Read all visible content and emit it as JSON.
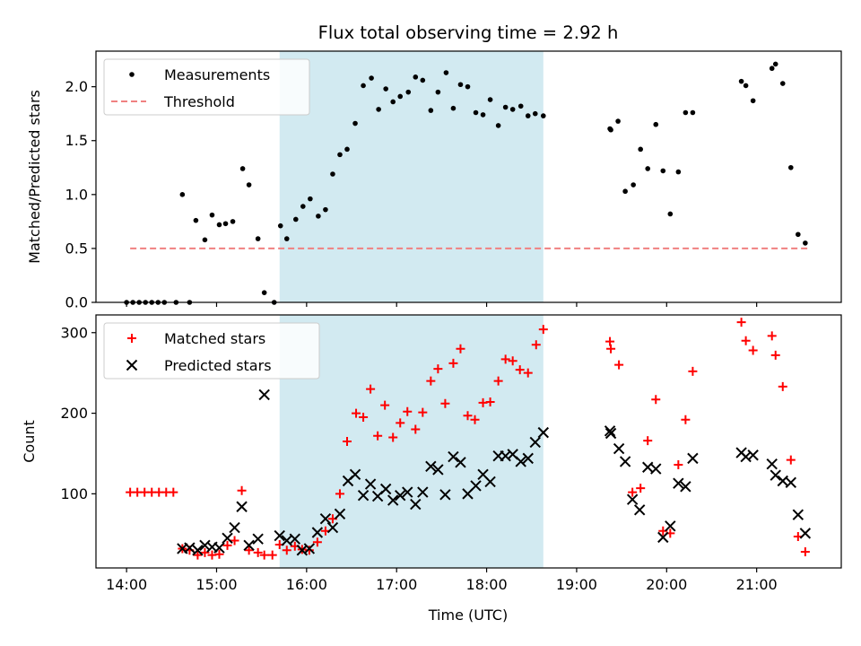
{
  "chart_data": {
    "title": "Flux total observing time = 2.92 h",
    "x_axis": {
      "label": "Time (UTC)",
      "min_hours": 13.66,
      "max_hours": 21.94,
      "ticks": [
        {
          "hours": 14,
          "label": "14:00"
        },
        {
          "hours": 15,
          "label": "15:00"
        },
        {
          "hours": 16,
          "label": "16:00"
        },
        {
          "hours": 17,
          "label": "17:00"
        },
        {
          "hours": 18,
          "label": "18:00"
        },
        {
          "hours": 19,
          "label": "19:00"
        },
        {
          "hours": 20,
          "label": "20:00"
        },
        {
          "hours": 21,
          "label": "21:00"
        }
      ]
    },
    "shaded_interval_hours": [
      15.7,
      18.63
    ],
    "shade_color": "#add8e6",
    "panels": [
      {
        "type": "scatter",
        "ylabel": "Matched/Predicted stars",
        "ylim": [
          0.0,
          2.33
        ],
        "yticks": [
          0.0,
          0.5,
          1.0,
          1.5,
          2.0
        ],
        "ytick_labels": [
          "0.0",
          "0.5",
          "1.0",
          "1.5",
          "2.0"
        ],
        "legend": {
          "position": "upper left",
          "entries": [
            "Measurements",
            "Threshold"
          ]
        },
        "series": [
          {
            "name": "Measurements",
            "marker": "dot",
            "color": "#000000",
            "points": [
              [
                14.0,
                0.0
              ],
              [
                14.07,
                0.0
              ],
              [
                14.14,
                0.0
              ],
              [
                14.21,
                0.0
              ],
              [
                14.28,
                0.0
              ],
              [
                14.35,
                0.0
              ],
              [
                14.42,
                0.0
              ],
              [
                14.55,
                0.0
              ],
              [
                14.7,
                0.0
              ],
              [
                14.62,
                1.0
              ],
              [
                14.77,
                0.76
              ],
              [
                14.87,
                0.58
              ],
              [
                14.95,
                0.81
              ],
              [
                15.03,
                0.72
              ],
              [
                15.1,
                0.73
              ],
              [
                15.18,
                0.75
              ],
              [
                15.29,
                1.24
              ],
              [
                15.36,
                1.09
              ],
              [
                15.46,
                0.59
              ],
              [
                15.53,
                0.09
              ],
              [
                15.64,
                0.0
              ],
              [
                15.71,
                0.71
              ],
              [
                15.78,
                0.59
              ],
              [
                15.88,
                0.77
              ],
              [
                15.96,
                0.89
              ],
              [
                16.04,
                0.96
              ],
              [
                16.13,
                0.8
              ],
              [
                16.21,
                0.86
              ],
              [
                16.29,
                1.19
              ],
              [
                16.37,
                1.37
              ],
              [
                16.45,
                1.42
              ],
              [
                16.54,
                1.66
              ],
              [
                16.63,
                2.01
              ],
              [
                16.72,
                2.08
              ],
              [
                16.8,
                1.79
              ],
              [
                16.88,
                1.98
              ],
              [
                16.96,
                1.86
              ],
              [
                17.04,
                1.91
              ],
              [
                17.13,
                1.95
              ],
              [
                17.21,
                2.09
              ],
              [
                17.29,
                2.06
              ],
              [
                17.38,
                1.78
              ],
              [
                17.46,
                1.95
              ],
              [
                17.55,
                2.13
              ],
              [
                17.63,
                1.8
              ],
              [
                17.71,
                2.02
              ],
              [
                17.79,
                2.0
              ],
              [
                17.88,
                1.76
              ],
              [
                17.96,
                1.74
              ],
              [
                18.04,
                1.88
              ],
              [
                18.13,
                1.64
              ],
              [
                18.21,
                1.81
              ],
              [
                18.29,
                1.79
              ],
              [
                18.38,
                1.82
              ],
              [
                18.46,
                1.73
              ],
              [
                18.54,
                1.75
              ],
              [
                18.63,
                1.73
              ],
              [
                19.37,
                1.61
              ],
              [
                19.38,
                1.6
              ],
              [
                19.46,
                1.68
              ],
              [
                19.54,
                1.03
              ],
              [
                19.63,
                1.09
              ],
              [
                19.71,
                1.42
              ],
              [
                19.79,
                1.24
              ],
              [
                19.88,
                1.65
              ],
              [
                19.96,
                1.22
              ],
              [
                20.04,
                0.82
              ],
              [
                20.13,
                1.21
              ],
              [
                20.21,
                1.76
              ],
              [
                20.29,
                1.76
              ],
              [
                20.83,
                2.05
              ],
              [
                20.88,
                2.01
              ],
              [
                20.96,
                1.87
              ],
              [
                21.17,
                2.17
              ],
              [
                21.21,
                2.21
              ],
              [
                21.29,
                2.03
              ],
              [
                21.38,
                1.25
              ],
              [
                21.46,
                0.63
              ],
              [
                21.54,
                0.55
              ]
            ]
          },
          {
            "name": "Threshold",
            "style": "dashed-line",
            "color": "#f08080",
            "points": [
              [
                14.04,
                0.5
              ],
              [
                21.6,
                0.5
              ]
            ]
          }
        ]
      },
      {
        "type": "scatter",
        "ylabel": "Count",
        "ylim": [
          8,
          322
        ],
        "yticks": [
          100,
          200,
          300
        ],
        "ytick_labels": [
          "100",
          "200",
          "300"
        ],
        "legend": {
          "position": "upper left",
          "entries": [
            "Matched stars",
            "Predicted stars"
          ]
        },
        "series": [
          {
            "name": "Matched stars",
            "marker": "plus",
            "color": "#ff0000",
            "points": [
              [
                14.04,
                102
              ],
              [
                14.12,
                102
              ],
              [
                14.2,
                102
              ],
              [
                14.28,
                102
              ],
              [
                14.36,
                102
              ],
              [
                14.44,
                102
              ],
              [
                14.52,
                102
              ],
              [
                14.62,
                32
              ],
              [
                14.7,
                30
              ],
              [
                14.79,
                24
              ],
              [
                14.87,
                27
              ],
              [
                14.95,
                24
              ],
              [
                15.03,
                25
              ],
              [
                15.12,
                36
              ],
              [
                15.2,
                42
              ],
              [
                15.28,
                104
              ],
              [
                15.36,
                30
              ],
              [
                15.46,
                27
              ],
              [
                15.53,
                24
              ],
              [
                15.62,
                24
              ],
              [
                15.7,
                37
              ],
              [
                15.78,
                30
              ],
              [
                15.87,
                35
              ],
              [
                15.95,
                31
              ],
              [
                16.03,
                30
              ],
              [
                16.12,
                40
              ],
              [
                16.21,
                54
              ],
              [
                16.29,
                69
              ],
              [
                16.37,
                100
              ],
              [
                16.45,
                165
              ],
              [
                16.55,
                200
              ],
              [
                16.63,
                195
              ],
              [
                16.71,
                230
              ],
              [
                16.79,
                172
              ],
              [
                16.87,
                210
              ],
              [
                16.96,
                170
              ],
              [
                17.04,
                188
              ],
              [
                17.12,
                202
              ],
              [
                17.21,
                180
              ],
              [
                17.29,
                201
              ],
              [
                17.38,
                240
              ],
              [
                17.46,
                255
              ],
              [
                17.54,
                212
              ],
              [
                17.63,
                262
              ],
              [
                17.71,
                280
              ],
              [
                17.79,
                197
              ],
              [
                17.87,
                192
              ],
              [
                17.96,
                213
              ],
              [
                18.04,
                214
              ],
              [
                18.13,
                240
              ],
              [
                18.21,
                267
              ],
              [
                18.29,
                265
              ],
              [
                18.37,
                254
              ],
              [
                18.46,
                250
              ],
              [
                18.55,
                285
              ],
              [
                18.63,
                304
              ],
              [
                19.37,
                289
              ],
              [
                19.38,
                280
              ],
              [
                19.47,
                260
              ],
              [
                19.62,
                102
              ],
              [
                19.71,
                107
              ],
              [
                19.79,
                166
              ],
              [
                19.88,
                217
              ],
              [
                19.96,
                54
              ],
              [
                20.04,
                51
              ],
              [
                20.13,
                136
              ],
              [
                20.21,
                192
              ],
              [
                20.29,
                252
              ],
              [
                20.83,
                313
              ],
              [
                20.88,
                290
              ],
              [
                20.96,
                278
              ],
              [
                21.17,
                296
              ],
              [
                21.21,
                272
              ],
              [
                21.29,
                233
              ],
              [
                21.38,
                142
              ],
              [
                21.46,
                47
              ],
              [
                21.54,
                28
              ]
            ]
          },
          {
            "name": "Predicted stars",
            "marker": "x",
            "color": "#000000",
            "points": [
              [
                14.62,
                32
              ],
              [
                14.7,
                33
              ],
              [
                14.79,
                30
              ],
              [
                14.87,
                36
              ],
              [
                14.95,
                34
              ],
              [
                15.03,
                33
              ],
              [
                15.12,
                45
              ],
              [
                15.2,
                58
              ],
              [
                15.28,
                84
              ],
              [
                15.36,
                36
              ],
              [
                15.46,
                44
              ],
              [
                15.53,
                223
              ],
              [
                15.7,
                48
              ],
              [
                15.78,
                42
              ],
              [
                15.87,
                44
              ],
              [
                15.95,
                30
              ],
              [
                16.03,
                32
              ],
              [
                16.12,
                52
              ],
              [
                16.21,
                69
              ],
              [
                16.29,
                58
              ],
              [
                16.37,
                75
              ],
              [
                16.46,
                116
              ],
              [
                16.54,
                124
              ],
              [
                16.63,
                98
              ],
              [
                16.71,
                112
              ],
              [
                16.79,
                97
              ],
              [
                16.88,
                106
              ],
              [
                16.96,
                92
              ],
              [
                17.04,
                98
              ],
              [
                17.12,
                102
              ],
              [
                17.21,
                87
              ],
              [
                17.29,
                102
              ],
              [
                17.38,
                134
              ],
              [
                17.46,
                130
              ],
              [
                17.54,
                99
              ],
              [
                17.63,
                146
              ],
              [
                17.71,
                139
              ],
              [
                17.79,
                100
              ],
              [
                17.88,
                110
              ],
              [
                17.96,
                124
              ],
              [
                18.04,
                115
              ],
              [
                18.13,
                147
              ],
              [
                18.21,
                147
              ],
              [
                18.29,
                149
              ],
              [
                18.38,
                140
              ],
              [
                18.46,
                144
              ],
              [
                18.54,
                164
              ],
              [
                18.63,
                176
              ],
              [
                19.37,
                178
              ],
              [
                19.38,
                175
              ],
              [
                19.47,
                156
              ],
              [
                19.54,
                140
              ],
              [
                19.62,
                93
              ],
              [
                19.7,
                80
              ],
              [
                19.79,
                133
              ],
              [
                19.88,
                131
              ],
              [
                19.96,
                46
              ],
              [
                20.04,
                60
              ],
              [
                20.13,
                113
              ],
              [
                20.21,
                109
              ],
              [
                20.29,
                144
              ],
              [
                20.83,
                151
              ],
              [
                20.88,
                146
              ],
              [
                20.96,
                148
              ],
              [
                21.17,
                137
              ],
              [
                21.21,
                123
              ],
              [
                21.29,
                116
              ],
              [
                21.38,
                114
              ],
              [
                21.46,
                74
              ],
              [
                21.54,
                51
              ]
            ]
          }
        ]
      }
    ]
  }
}
